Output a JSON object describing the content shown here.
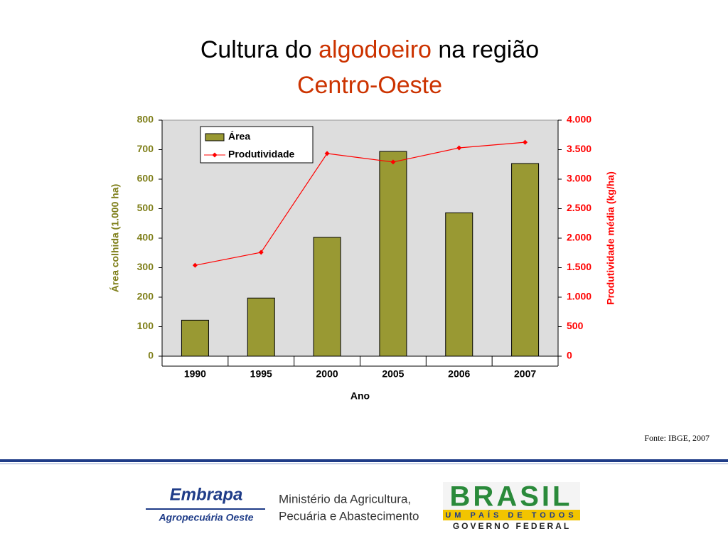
{
  "slide": {
    "title_parts": [
      "Cultura do ",
      "algodoeiro",
      " na região",
      "Centro-Oeste"
    ],
    "source": "Fonte: IBGE, 2007",
    "logos": {
      "embrapa": "Embrapa",
      "embrapa_unit": "Agropecuária Oeste",
      "ministry": [
        "Ministério da Agricultura,",
        "Pecuária e Abastecimento"
      ],
      "brasil": "BRASIL",
      "brasil_motto": "UM PAÍS DE TODOS",
      "government": "GOVERNO FEDERAL"
    }
  },
  "chart_data": {
    "type": "bar",
    "categories": [
      "1990",
      "1995",
      "2000",
      "2005",
      "2006",
      "2007"
    ],
    "series": [
      {
        "name": "Área",
        "color": "#999933",
        "values": [
          122,
          197,
          403,
          694,
          486,
          653
        ]
      },
      {
        "name": "Produtividade",
        "color": "#ff0000",
        "type": "line",
        "axis": "y2",
        "values": [
          1540,
          1760,
          3435,
          3290,
          3530,
          3625
        ]
      }
    ],
    "xlabel": "Ano",
    "ylabel": "Área colhida (1.000 ha)",
    "y2label": "Produtividade média (kg/ha)",
    "ylim": [
      0,
      800
    ],
    "yticks": [
      0,
      100,
      200,
      300,
      400,
      500,
      600,
      700,
      800
    ],
    "y2lim": [
      0,
      4000
    ],
    "y2ticks": [
      0,
      500,
      {
        "value": 1000,
        "label": "1.000"
      },
      {
        "value": 1500,
        "label": "1.500"
      },
      {
        "value": 2000,
        "label": "2.000"
      },
      {
        "value": 2500,
        "label": "2.500"
      },
      {
        "value": 3000,
        "label": "3.000"
      },
      {
        "value": 3500,
        "label": "3.500"
      },
      {
        "value": 4000,
        "label": "4.000"
      }
    ],
    "legend": "top-left",
    "plot_background": "#dddddd",
    "ycolor": "#7f7f1a",
    "y2color": "#ff0000"
  }
}
